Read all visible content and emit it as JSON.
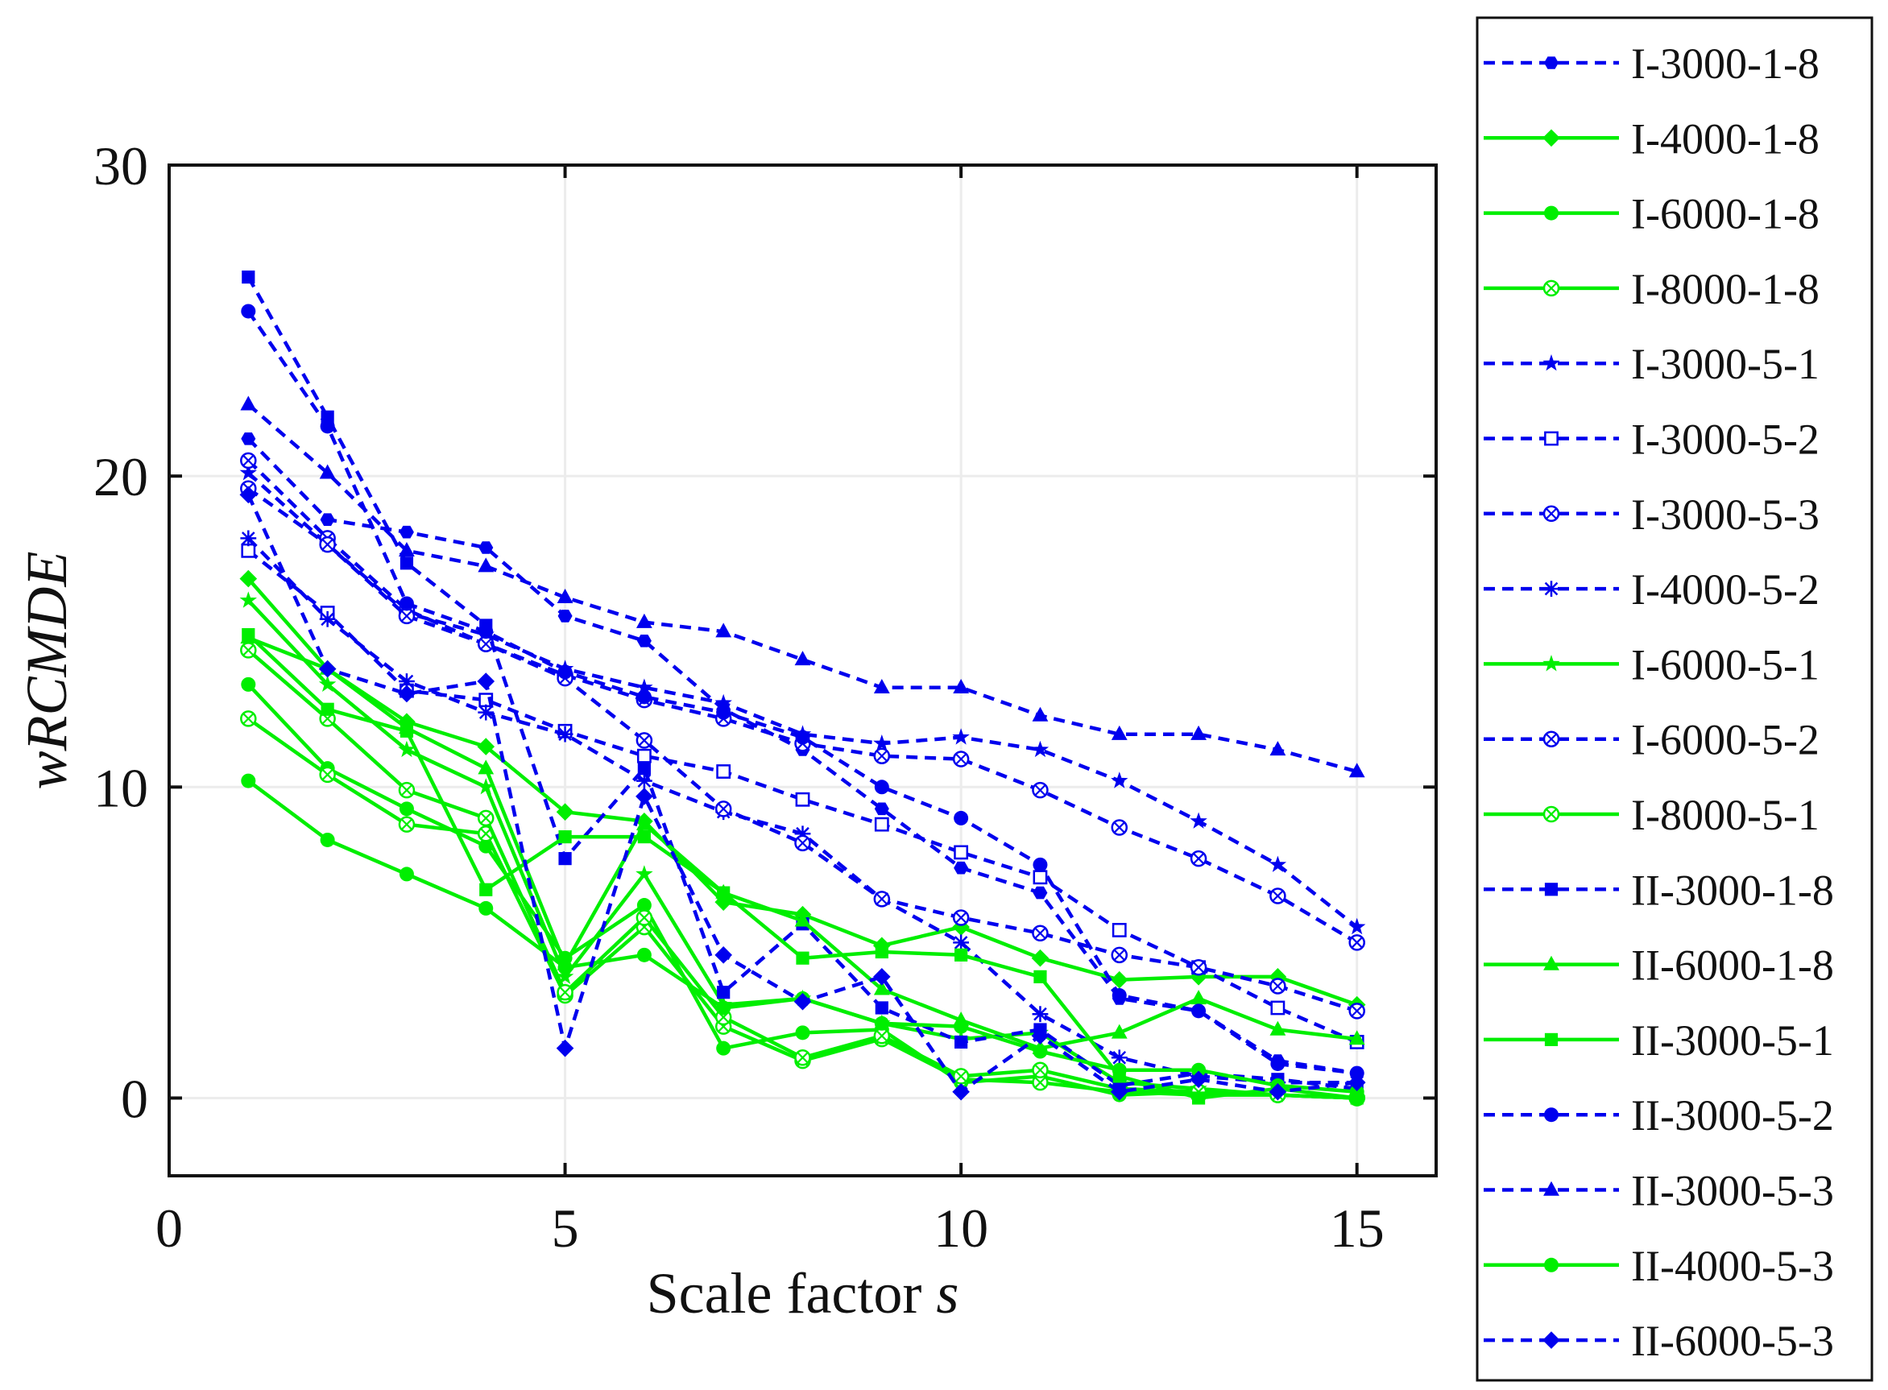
{
  "chart_data": {
    "type": "line",
    "title": "",
    "xlabel": "Scale factor",
    "xlabel_var": "s",
    "ylabel": "wRCMDE",
    "xlim": [
      0,
      16
    ],
    "ylim": [
      -2.5,
      30
    ],
    "xticks": [
      0,
      5,
      10,
      15
    ],
    "yticks": [
      0,
      10,
      20,
      30
    ],
    "xtick_labels": [
      "0",
      "5",
      "10",
      "15"
    ],
    "ytick_labels": [
      "0",
      "10",
      "20",
      "30"
    ],
    "grid": true,
    "legend_position": "outside-right",
    "x": [
      1,
      2,
      3,
      4,
      5,
      6,
      7,
      8,
      9,
      10,
      11,
      12,
      13,
      14,
      15
    ],
    "series": [
      {
        "name": "I-3000-1-8",
        "color": "#0000EE",
        "dash": "dashed",
        "marker": "hexagon",
        "values": [
          21.2,
          18.6,
          18.2,
          17.7,
          15.5,
          14.7,
          12.5,
          11.2,
          9.3,
          7.4,
          6.6,
          3.2,
          2.8,
          1.2,
          0.8
        ]
      },
      {
        "name": "I-4000-1-8",
        "color": "#00EE00",
        "dash": "solid",
        "marker": "diamond",
        "values": [
          16.7,
          13.8,
          12.1,
          11.3,
          9.2,
          8.9,
          6.3,
          5.9,
          4.9,
          5.5,
          4.5,
          3.8,
          3.9,
          3.9,
          3.0
        ]
      },
      {
        "name": "I-6000-1-8",
        "color": "#00EE00",
        "dash": "solid",
        "marker": "circle",
        "values": [
          13.3,
          10.6,
          9.3,
          8.1,
          4.5,
          6.2,
          1.6,
          2.1,
          2.2,
          0.5,
          0.7,
          0.1,
          0.2,
          0.1,
          0.0
        ]
      },
      {
        "name": "I-8000-1-8",
        "color": "#00EE00",
        "dash": "solid",
        "marker": "xcircle",
        "values": [
          12.2,
          10.4,
          8.8,
          8.5,
          3.3,
          5.5,
          2.3,
          1.2,
          1.9,
          0.6,
          0.5,
          0.2,
          0.1,
          0.1,
          0.0
        ]
      },
      {
        "name": "I-3000-5-1",
        "color": "#0000EE",
        "dash": "dashed",
        "marker": "star",
        "values": [
          20.1,
          17.8,
          15.6,
          14.9,
          13.8,
          13.2,
          12.7,
          11.7,
          11.4,
          11.6,
          11.2,
          10.2,
          8.9,
          7.5,
          5.5
        ]
      },
      {
        "name": "I-3000-5-2",
        "color": "#0000EE",
        "dash": "dashed",
        "marker": "square-open",
        "values": [
          17.6,
          15.6,
          13.1,
          12.8,
          11.8,
          11.0,
          10.5,
          9.6,
          8.8,
          7.9,
          7.1,
          5.4,
          4.2,
          2.9,
          1.8
        ]
      },
      {
        "name": "I-3000-5-3",
        "color": "#0000EE",
        "dash": "dashed",
        "marker": "xcircle",
        "values": [
          20.5,
          18.0,
          15.7,
          14.6,
          13.6,
          12.8,
          12.2,
          11.4,
          11.0,
          10.9,
          9.9,
          8.7,
          7.7,
          6.5,
          5.0
        ]
      },
      {
        "name": "I-4000-5-2",
        "color": "#0000EE",
        "dash": "dashed",
        "marker": "asterisk",
        "values": [
          18.0,
          15.4,
          13.4,
          12.4,
          11.7,
          10.2,
          9.2,
          8.5,
          6.4,
          5.0,
          2.7,
          1.3,
          0.7,
          0.5,
          0.5
        ]
      },
      {
        "name": "I-6000-5-1",
        "color": "#00EE00",
        "dash": "solid",
        "marker": "star",
        "values": [
          16.0,
          13.3,
          11.2,
          10.0,
          3.9,
          7.2,
          3.0,
          3.2,
          2.4,
          1.9,
          2.1,
          0.5,
          0.3,
          0.1,
          0.0
        ]
      },
      {
        "name": "I-6000-5-2",
        "color": "#0000EE",
        "dash": "dashed",
        "marker": "xcircle",
        "values": [
          19.6,
          17.8,
          15.5,
          14.6,
          13.5,
          11.5,
          9.3,
          8.2,
          6.4,
          5.8,
          5.3,
          4.6,
          4.2,
          3.6,
          2.8
        ]
      },
      {
        "name": "I-8000-5-1",
        "color": "#00EE00",
        "dash": "solid",
        "marker": "xcircle",
        "values": [
          14.4,
          12.2,
          9.9,
          9.0,
          3.4,
          5.8,
          2.6,
          1.3,
          2.0,
          0.7,
          0.9,
          0.3,
          0.2,
          0.1,
          0.0
        ]
      },
      {
        "name": "II-3000-1-8",
        "color": "#0000EE",
        "dash": "dashed",
        "marker": "square",
        "values": [
          26.4,
          21.9,
          17.2,
          15.2,
          7.7,
          10.6,
          3.4,
          5.6,
          2.9,
          1.8,
          2.2,
          0.4,
          0.8,
          0.6,
          0.3
        ]
      },
      {
        "name": "II-6000-1-8",
        "color": "#00EE00",
        "dash": "solid",
        "marker": "triangle",
        "values": [
          14.8,
          13.8,
          11.9,
          10.6,
          4.3,
          8.8,
          6.6,
          5.7,
          3.5,
          2.5,
          1.6,
          2.1,
          3.2,
          2.2,
          1.9
        ]
      },
      {
        "name": "II-3000-5-1",
        "color": "#00EE00",
        "dash": "solid",
        "marker": "square",
        "values": [
          14.9,
          12.5,
          11.8,
          6.7,
          8.4,
          8.4,
          6.6,
          4.5,
          4.7,
          4.6,
          3.9,
          0.7,
          0.0,
          0.3,
          0.0
        ]
      },
      {
        "name": "II-3000-5-2",
        "color": "#0000EE",
        "dash": "dashed",
        "marker": "circle",
        "values": [
          25.3,
          21.6,
          15.9,
          15.0,
          13.7,
          12.9,
          12.4,
          11.6,
          10.0,
          9.0,
          7.5,
          3.3,
          2.8,
          1.1,
          0.8
        ]
      },
      {
        "name": "II-3000-5-3",
        "color": "#0000EE",
        "dash": "dashed",
        "marker": "triangle",
        "values": [
          22.3,
          20.1,
          17.6,
          17.1,
          16.1,
          15.3,
          15.0,
          14.1,
          13.2,
          13.2,
          12.3,
          11.7,
          11.7,
          11.2,
          10.5
        ]
      },
      {
        "name": "II-4000-5-3",
        "color": "#00EE00",
        "dash": "solid",
        "marker": "circle",
        "values": [
          10.2,
          8.3,
          7.2,
          6.1,
          4.2,
          4.6,
          2.9,
          3.2,
          2.4,
          2.3,
          1.5,
          0.9,
          0.9,
          0.4,
          0.2
        ]
      },
      {
        "name": "II-6000-5-3",
        "color": "#0000EE",
        "dash": "dashed",
        "marker": "diamond",
        "values": [
          19.4,
          13.8,
          13.0,
          13.4,
          1.6,
          9.7,
          4.6,
          3.1,
          3.9,
          0.2,
          2.0,
          0.2,
          0.6,
          0.2,
          0.5
        ]
      }
    ]
  }
}
